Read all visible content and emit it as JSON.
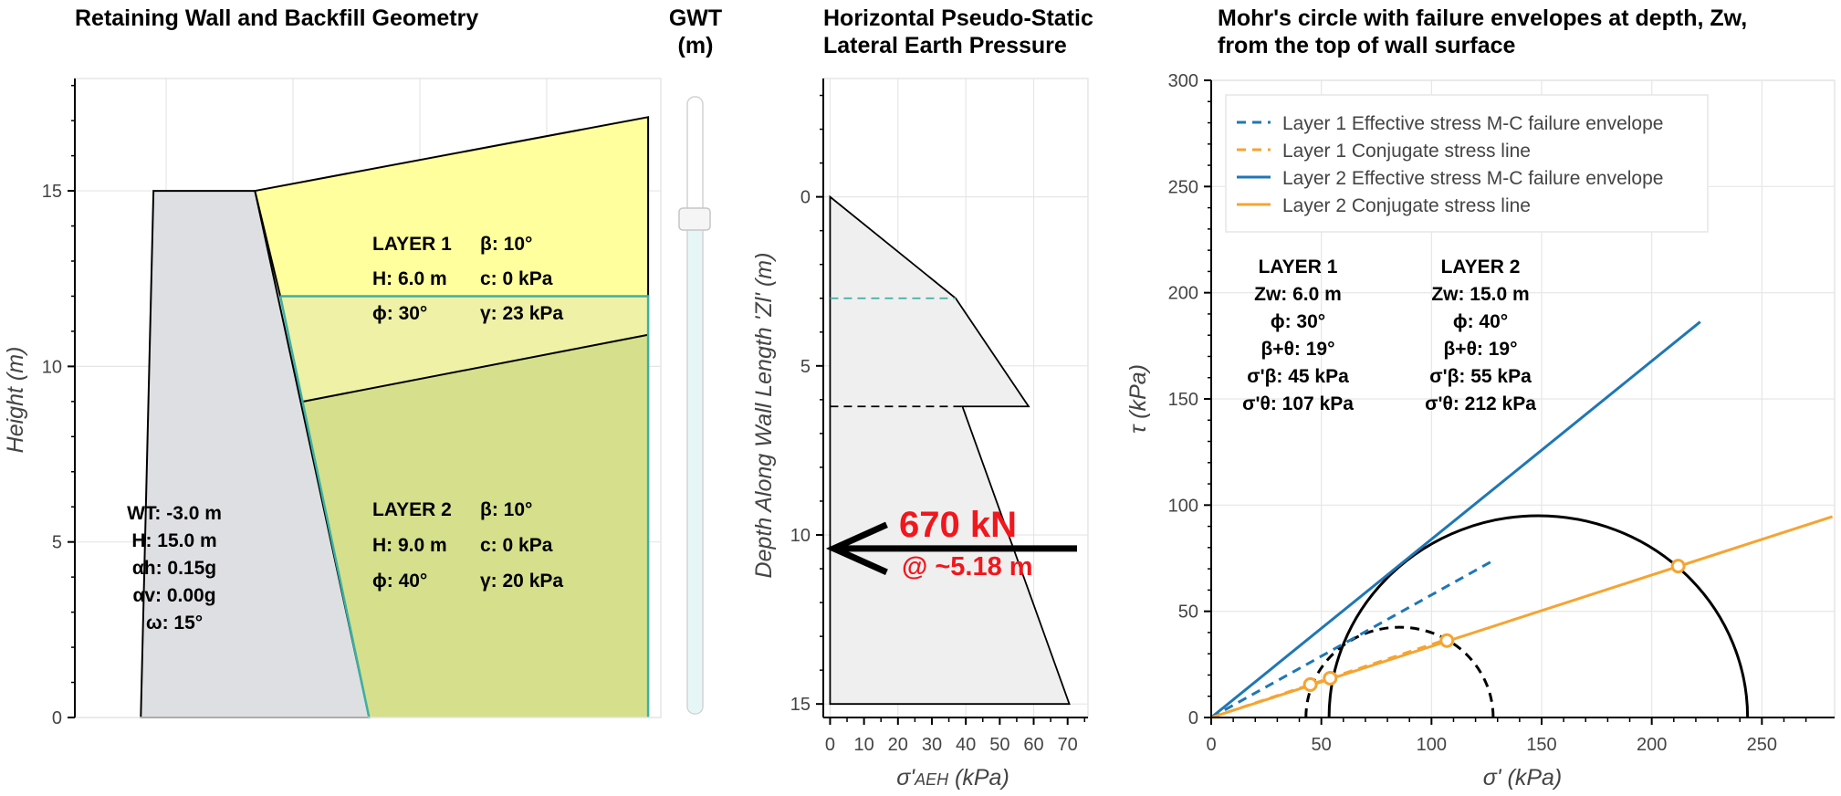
{
  "panel_geometry": {
    "title": "Retaining Wall and Backfill Geometry",
    "ylabel": "Height (m)",
    "layer1_label": [
      "LAYER 1",
      "β: 10°",
      "H: 6.0 m",
      "c: 0 kPa",
      "ϕ: 30°",
      "γ: 23 kPa"
    ],
    "layer2_label": [
      "LAYER 2",
      "β: 10°",
      "H: 9.0 m",
      "c: 0 kPa",
      "ϕ: 40°",
      "γ: 20 kPa"
    ],
    "wall_label": [
      "WT: -3.0 m",
      "H: 15.0 m",
      "αh: 0.15g",
      "αv: 0.00g",
      "ω: 15°"
    ],
    "colors": {
      "wall": "#dedfe2",
      "layer1": "#ffff9e",
      "layer1_submerged": "#eef1a6",
      "layer2": "#d5df8c",
      "water": "#3eb0a2"
    }
  },
  "slider": {
    "title_line1": "GWT",
    "title_line2": "(m)",
    "value": -3.0
  },
  "panel_pressure": {
    "title_line1": "Horizontal Pseudo-Static",
    "title_line2": "Lateral Earth Pressure",
    "ylabel": "Depth Along Wall Length 'Zl' (m)",
    "xlabel": "σ'AEH (kPa)",
    "resultant_force": "670 kN",
    "resultant_location": "@ ~5.18 m",
    "colors": {
      "fill": "#efefef",
      "force": "#f0171d",
      "water_line": "#3eb0a2"
    }
  },
  "panel_mohr": {
    "title_line1": "Mohr's circle with failure envelopes at depth, Zw,",
    "title_line2": "from the top of wall surface",
    "ylabel": "τ (kPa)",
    "xlabel": "σ' (kPa)",
    "legend": [
      {
        "label": "Layer 1 Effective stress M-C failure envelope",
        "color": "#1f77b4",
        "dash": true
      },
      {
        "label": "Layer 1 Conjugate stress line",
        "color": "#f5a431",
        "dash": true
      },
      {
        "label": "Layer 2 Effective stress M-C failure envelope",
        "color": "#1f77b4",
        "dash": false
      },
      {
        "label": "Layer 2 Conjugate stress line",
        "color": "#f5a431",
        "dash": false
      }
    ],
    "layer1_info": [
      "LAYER 1",
      "Zw: 6.0 m",
      "ϕ: 30°",
      "β+θ: 19°",
      "σ'β: 45 kPa",
      "σ'θ: 107 kPa"
    ],
    "layer2_info": [
      "LAYER 2",
      "Zw: 15.0 m",
      "ϕ: 40°",
      "β+θ: 19°",
      "σ'β: 55 kPa",
      "σ'θ: 212 kPa"
    ]
  },
  "chart_data": [
    {
      "type": "area",
      "name": "geometry",
      "xlim": [
        -1.6,
        21.5
      ],
      "ylim": [
        0,
        18.2
      ],
      "ticks_y": [
        0,
        5,
        10,
        15
      ],
      "grid": true,
      "polygons": {
        "wall": [
          [
            1.0,
            0
          ],
          [
            1.5,
            15.0
          ],
          [
            5.5,
            15.0
          ],
          [
            10.0,
            0
          ]
        ],
        "layer1_dry": [
          [
            5.5,
            15.0
          ],
          [
            21.0,
            17.1
          ],
          [
            21.0,
            12.0
          ],
          [
            6.5,
            12.0
          ]
        ],
        "layer1_submerged": [
          [
            6.5,
            12.0
          ],
          [
            21.0,
            12.0
          ],
          [
            21.0,
            10.9
          ],
          [
            7.4,
            9.0
          ]
        ],
        "layer2": [
          [
            7.4,
            9.0
          ],
          [
            21.0,
            10.9
          ],
          [
            21.0,
            0
          ],
          [
            10.0,
            0
          ]
        ]
      },
      "water_line": [
        [
          6.5,
          12.0
        ],
        [
          21.0,
          12.0
        ],
        [
          21.0,
          0
        ]
      ]
    },
    {
      "type": "line",
      "name": "lateral-pressure",
      "xlim": [
        -2,
        76
      ],
      "ylim": [
        15.4,
        -3.5
      ],
      "ticks_x": [
        0,
        10,
        20,
        30,
        40,
        50,
        60,
        70
      ],
      "ticks_y": [
        0,
        5,
        10,
        15
      ],
      "grid": true,
      "profile": [
        [
          0,
          0
        ],
        [
          37,
          3.0
        ],
        [
          58.5,
          6.2
        ],
        [
          39,
          6.2
        ],
        [
          70.5,
          15.0
        ],
        [
          0,
          15.0
        ]
      ],
      "water_table_depth": 3.0,
      "layer_boundary_depth": 6.2,
      "resultant_depth": 10.4
    },
    {
      "type": "line",
      "name": "mohr-circle",
      "xlim": [
        0,
        300
      ],
      "ylim": [
        0,
        300
      ],
      "ticks_x": [
        0,
        50,
        100,
        150,
        200,
        250
      ],
      "ticks_y": [
        0,
        50,
        100,
        150,
        200,
        250,
        300
      ],
      "grid": true,
      "circles": [
        {
          "layer": "Layer 1",
          "center": 85.5,
          "radius": 42.5,
          "dash": true
        },
        {
          "layer": "Layer 2",
          "center": 148.5,
          "radius": 95,
          "dash": false
        }
      ],
      "lines": [
        {
          "layer": "Layer 1",
          "kind": "envelope",
          "from": [
            0,
            0
          ],
          "to": [
            127,
            73.3
          ],
          "dash": true
        },
        {
          "layer": "Layer 1",
          "kind": "conjugate",
          "from": [
            0,
            0
          ],
          "to": [
            107,
            36.8
          ],
          "dash": true
        },
        {
          "layer": "Layer 2",
          "kind": "envelope",
          "from": [
            0,
            0
          ],
          "to": [
            222,
            186.3
          ],
          "dash": false
        },
        {
          "layer": "Layer 2",
          "kind": "conjugate",
          "from": [
            0,
            0
          ],
          "to": [
            282,
            94.6
          ],
          "dash": false
        }
      ],
      "points": [
        [
          45,
          15.5
        ],
        [
          54,
          18.5
        ],
        [
          107,
          36.2
        ],
        [
          212,
          71.3
        ]
      ]
    }
  ]
}
